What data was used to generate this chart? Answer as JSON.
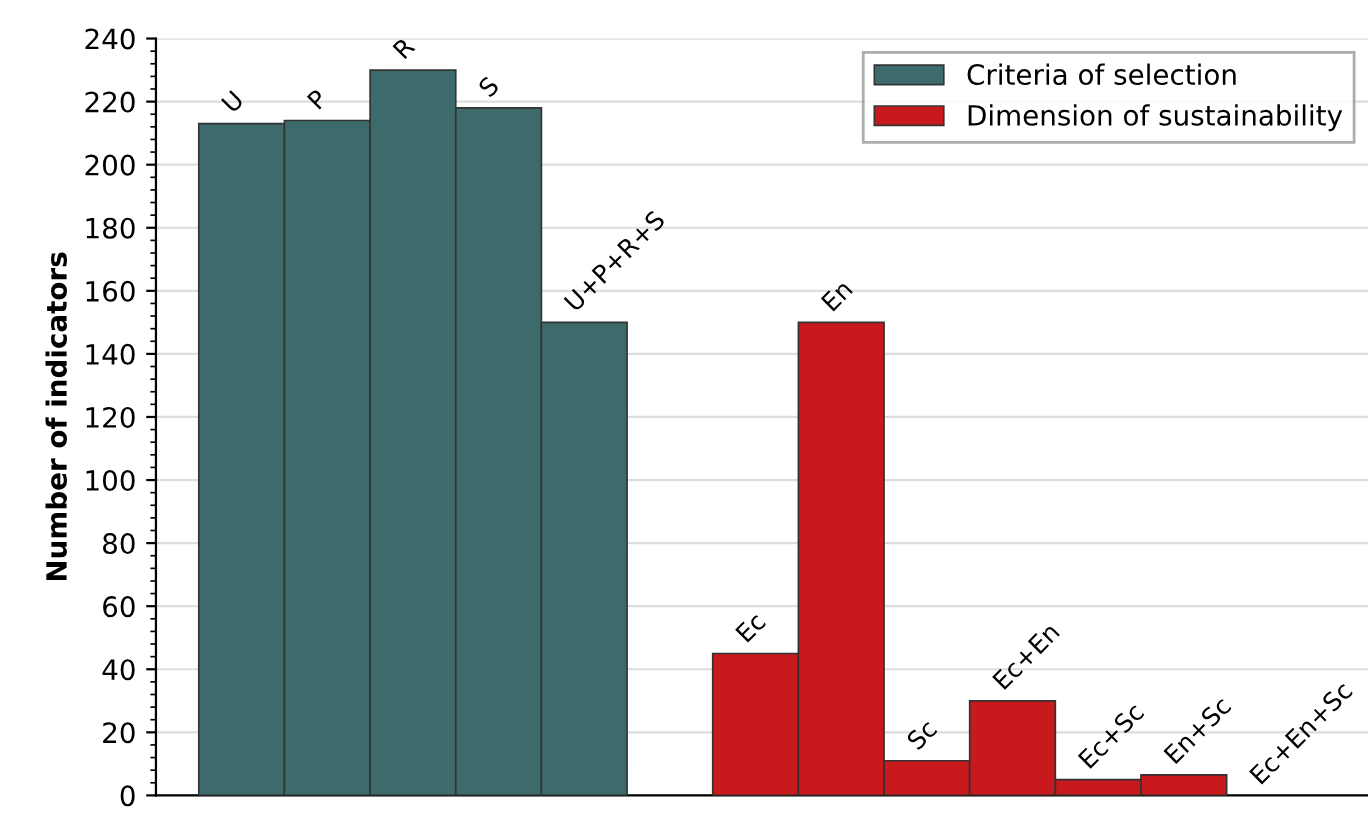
{
  "chart_data": {
    "type": "bar",
    "ylabel": "Number of indicators",
    "categories": [
      null,
      null,
      null,
      null,
      null,
      null,
      null,
      null,
      null,
      null,
      null,
      null,
      null
    ],
    "series": [
      {
        "name": "Criteria of selection",
        "color": "#3d6b6b",
        "values": [
          213,
          214,
          230,
          218,
          150,
          null,
          null,
          null,
          null,
          null,
          null,
          null,
          null
        ]
      },
      {
        "name": "Dimension of sustainability",
        "color": "#c8191c",
        "values": [
          null,
          null,
          null,
          null,
          null,
          null,
          45,
          150,
          11,
          30,
          5,
          6.5,
          0
        ]
      }
    ],
    "annotations": [
      {
        "text": "U",
        "y": 213
      },
      {
        "text": "P",
        "y": 214
      },
      {
        "text": "R",
        "y": 230
      },
      {
        "text": "S",
        "y": 218
      },
      {
        "text": "U+P+R+S",
        "y": 150
      },
      {
        "text": "Ec",
        "y": 45
      },
      {
        "text": "En",
        "y": 150
      },
      {
        "text": "Sc",
        "y": 11
      },
      {
        "text": "Ec+En",
        "y": 30
      },
      {
        "text": "Ec+Sc",
        "y": 5
      },
      {
        "text": "En+Sc",
        "y": 6.5
      },
      "Ec+En+Sc"
    ],
    "ylim": [
      0,
      240
    ],
    "yticks": [
      0,
      20,
      40,
      60,
      80,
      100,
      120,
      140,
      160,
      180,
      200,
      220,
      240
    ],
    "grid": "y",
    "legend": "top right"
  }
}
